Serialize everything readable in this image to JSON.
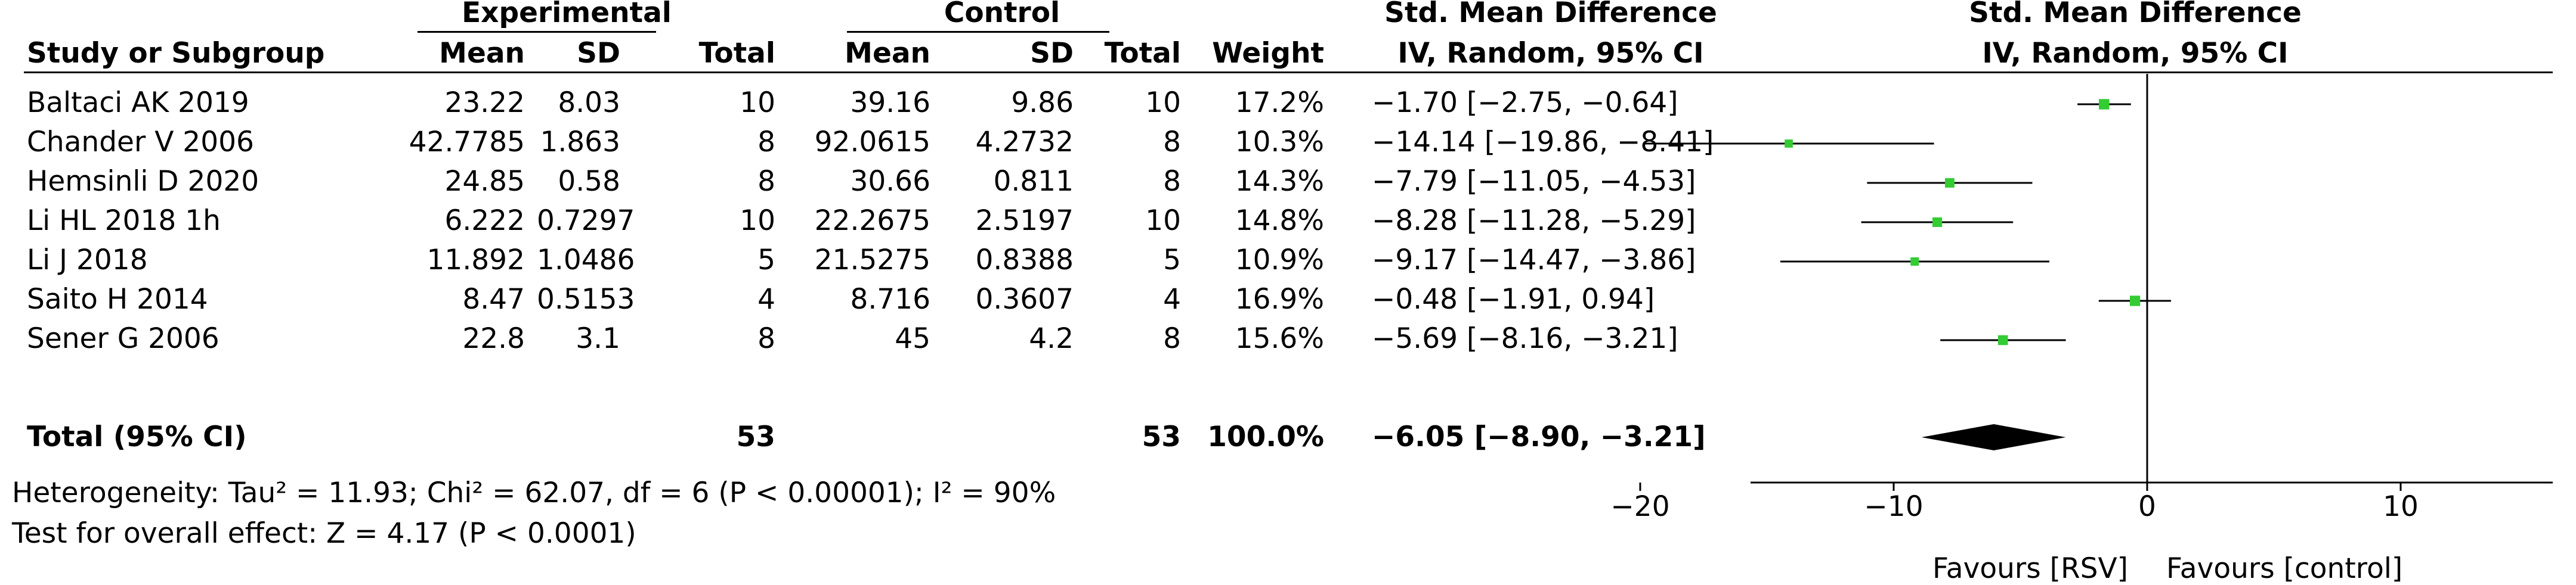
{
  "header": {
    "group1": "Experimental",
    "group2": "Control",
    "smd_title": "Std. Mean Difference",
    "smd_sub": "IV, Random, 95% CI",
    "plot_title": "Std. Mean Difference",
    "plot_sub": "IV, Random, 95% CI",
    "cols": {
      "study": "Study or Subgroup",
      "mean1": "Mean",
      "sd1": "SD",
      "total1": "Total",
      "mean2": "Mean",
      "sd2": "SD",
      "total2": "Total",
      "weight": "Weight"
    }
  },
  "studies": [
    {
      "name": "Baltaci AK 2019",
      "m1": "23.22",
      "sd1": "8.03",
      "n1": "10",
      "m2": "39.16",
      "sd2": "9.86",
      "n2": "10",
      "weight": "17.2%",
      "ci": "−1.70 [−2.75, −0.64]"
    },
    {
      "name": "Chander V 2006",
      "m1": "42.7785",
      "sd1": "1.863",
      "n1": "8",
      "m2": "92.0615",
      "sd2": "4.2732",
      "n2": "8",
      "weight": "10.3%",
      "ci": "−14.14 [−19.86, −8.41]"
    },
    {
      "name": "Hemsinli D 2020",
      "m1": "24.85",
      "sd1": "0.58",
      "n1": "8",
      "m2": "30.66",
      "sd2": "0.811",
      "n2": "8",
      "weight": "14.3%",
      "ci": "−7.79 [−11.05, −4.53]"
    },
    {
      "name": "Li HL 2018 1h",
      "m1": "6.222",
      "sd1": "0.7297",
      "n1": "10",
      "m2": "22.2675",
      "sd2": "2.5197",
      "n2": "10",
      "weight": "14.8%",
      "ci": "−8.28 [−11.28, −5.29]"
    },
    {
      "name": "Li J 2018",
      "m1": "11.892",
      "sd1": "1.0486",
      "n1": "5",
      "m2": "21.5275",
      "sd2": "0.8388",
      "n2": "5",
      "weight": "10.9%",
      "ci": "−9.17 [−14.47, −3.86]"
    },
    {
      "name": "Saito H 2014",
      "m1": "8.47",
      "sd1": "0.5153",
      "n1": "4",
      "m2": "8.716",
      "sd2": "0.3607",
      "n2": "4",
      "weight": "16.9%",
      "ci": "−0.48 [−1.91, 0.94]"
    },
    {
      "name": "Sener G 2006",
      "m1": "22.8",
      "sd1": "3.1",
      "n1": "8",
      "m2": "45",
      "sd2": "4.2",
      "n2": "8",
      "weight": "15.6%",
      "ci": "−5.69 [−8.16, −3.21]"
    }
  ],
  "total": {
    "name": "Total (95% CI)",
    "n1": "53",
    "n2": "53",
    "weight": "100.0%",
    "ci": "−6.05 [−8.90, −3.21]"
  },
  "footer": {
    "heterogeneity": "Heterogeneity: Tau² = 11.93; Chi² = 62.07, df = 6 (P < 0.00001); I² = 90%",
    "overall": "Test for overall effect: Z = 4.17 (P < 0.0001)"
  },
  "chart_data": {
    "type": "forest",
    "title": "Std. Mean Difference",
    "subtitle": "IV, Random, 95% CI",
    "xlim": [
      -27,
      27
    ],
    "xticks": [
      -20,
      -10,
      0,
      10,
      20
    ],
    "xtick_labels": [
      "−20",
      "−10",
      "0",
      "10",
      "20"
    ],
    "favours_left": "Favours [RSV]",
    "favours_right": "Favours [control]",
    "series": [
      {
        "study": "Baltaci AK 2019",
        "smd": -1.7,
        "lo": -2.75,
        "hi": -0.64,
        "weight": 17.2
      },
      {
        "study": "Chander V 2006",
        "smd": -14.14,
        "lo": -19.86,
        "hi": -8.41,
        "weight": 10.3
      },
      {
        "study": "Hemsinli D 2020",
        "smd": -7.79,
        "lo": -11.05,
        "hi": -4.53,
        "weight": 14.3
      },
      {
        "study": "Li HL 2018 1h",
        "smd": -8.28,
        "lo": -11.28,
        "hi": -5.29,
        "weight": 14.8
      },
      {
        "study": "Li J 2018",
        "smd": -9.17,
        "lo": -14.47,
        "hi": -3.86,
        "weight": 10.9
      },
      {
        "study": "Saito H 2014",
        "smd": -0.48,
        "lo": -1.91,
        "hi": 0.94,
        "weight": 16.9
      },
      {
        "study": "Sener G 2006",
        "smd": -5.69,
        "lo": -8.16,
        "hi": -3.21,
        "weight": 15.6
      }
    ],
    "pooled": {
      "smd": -6.05,
      "lo": -8.9,
      "hi": -3.21
    },
    "colors": {
      "marker": "#33cc33",
      "diamond": "#000000",
      "line": "#000000"
    }
  }
}
